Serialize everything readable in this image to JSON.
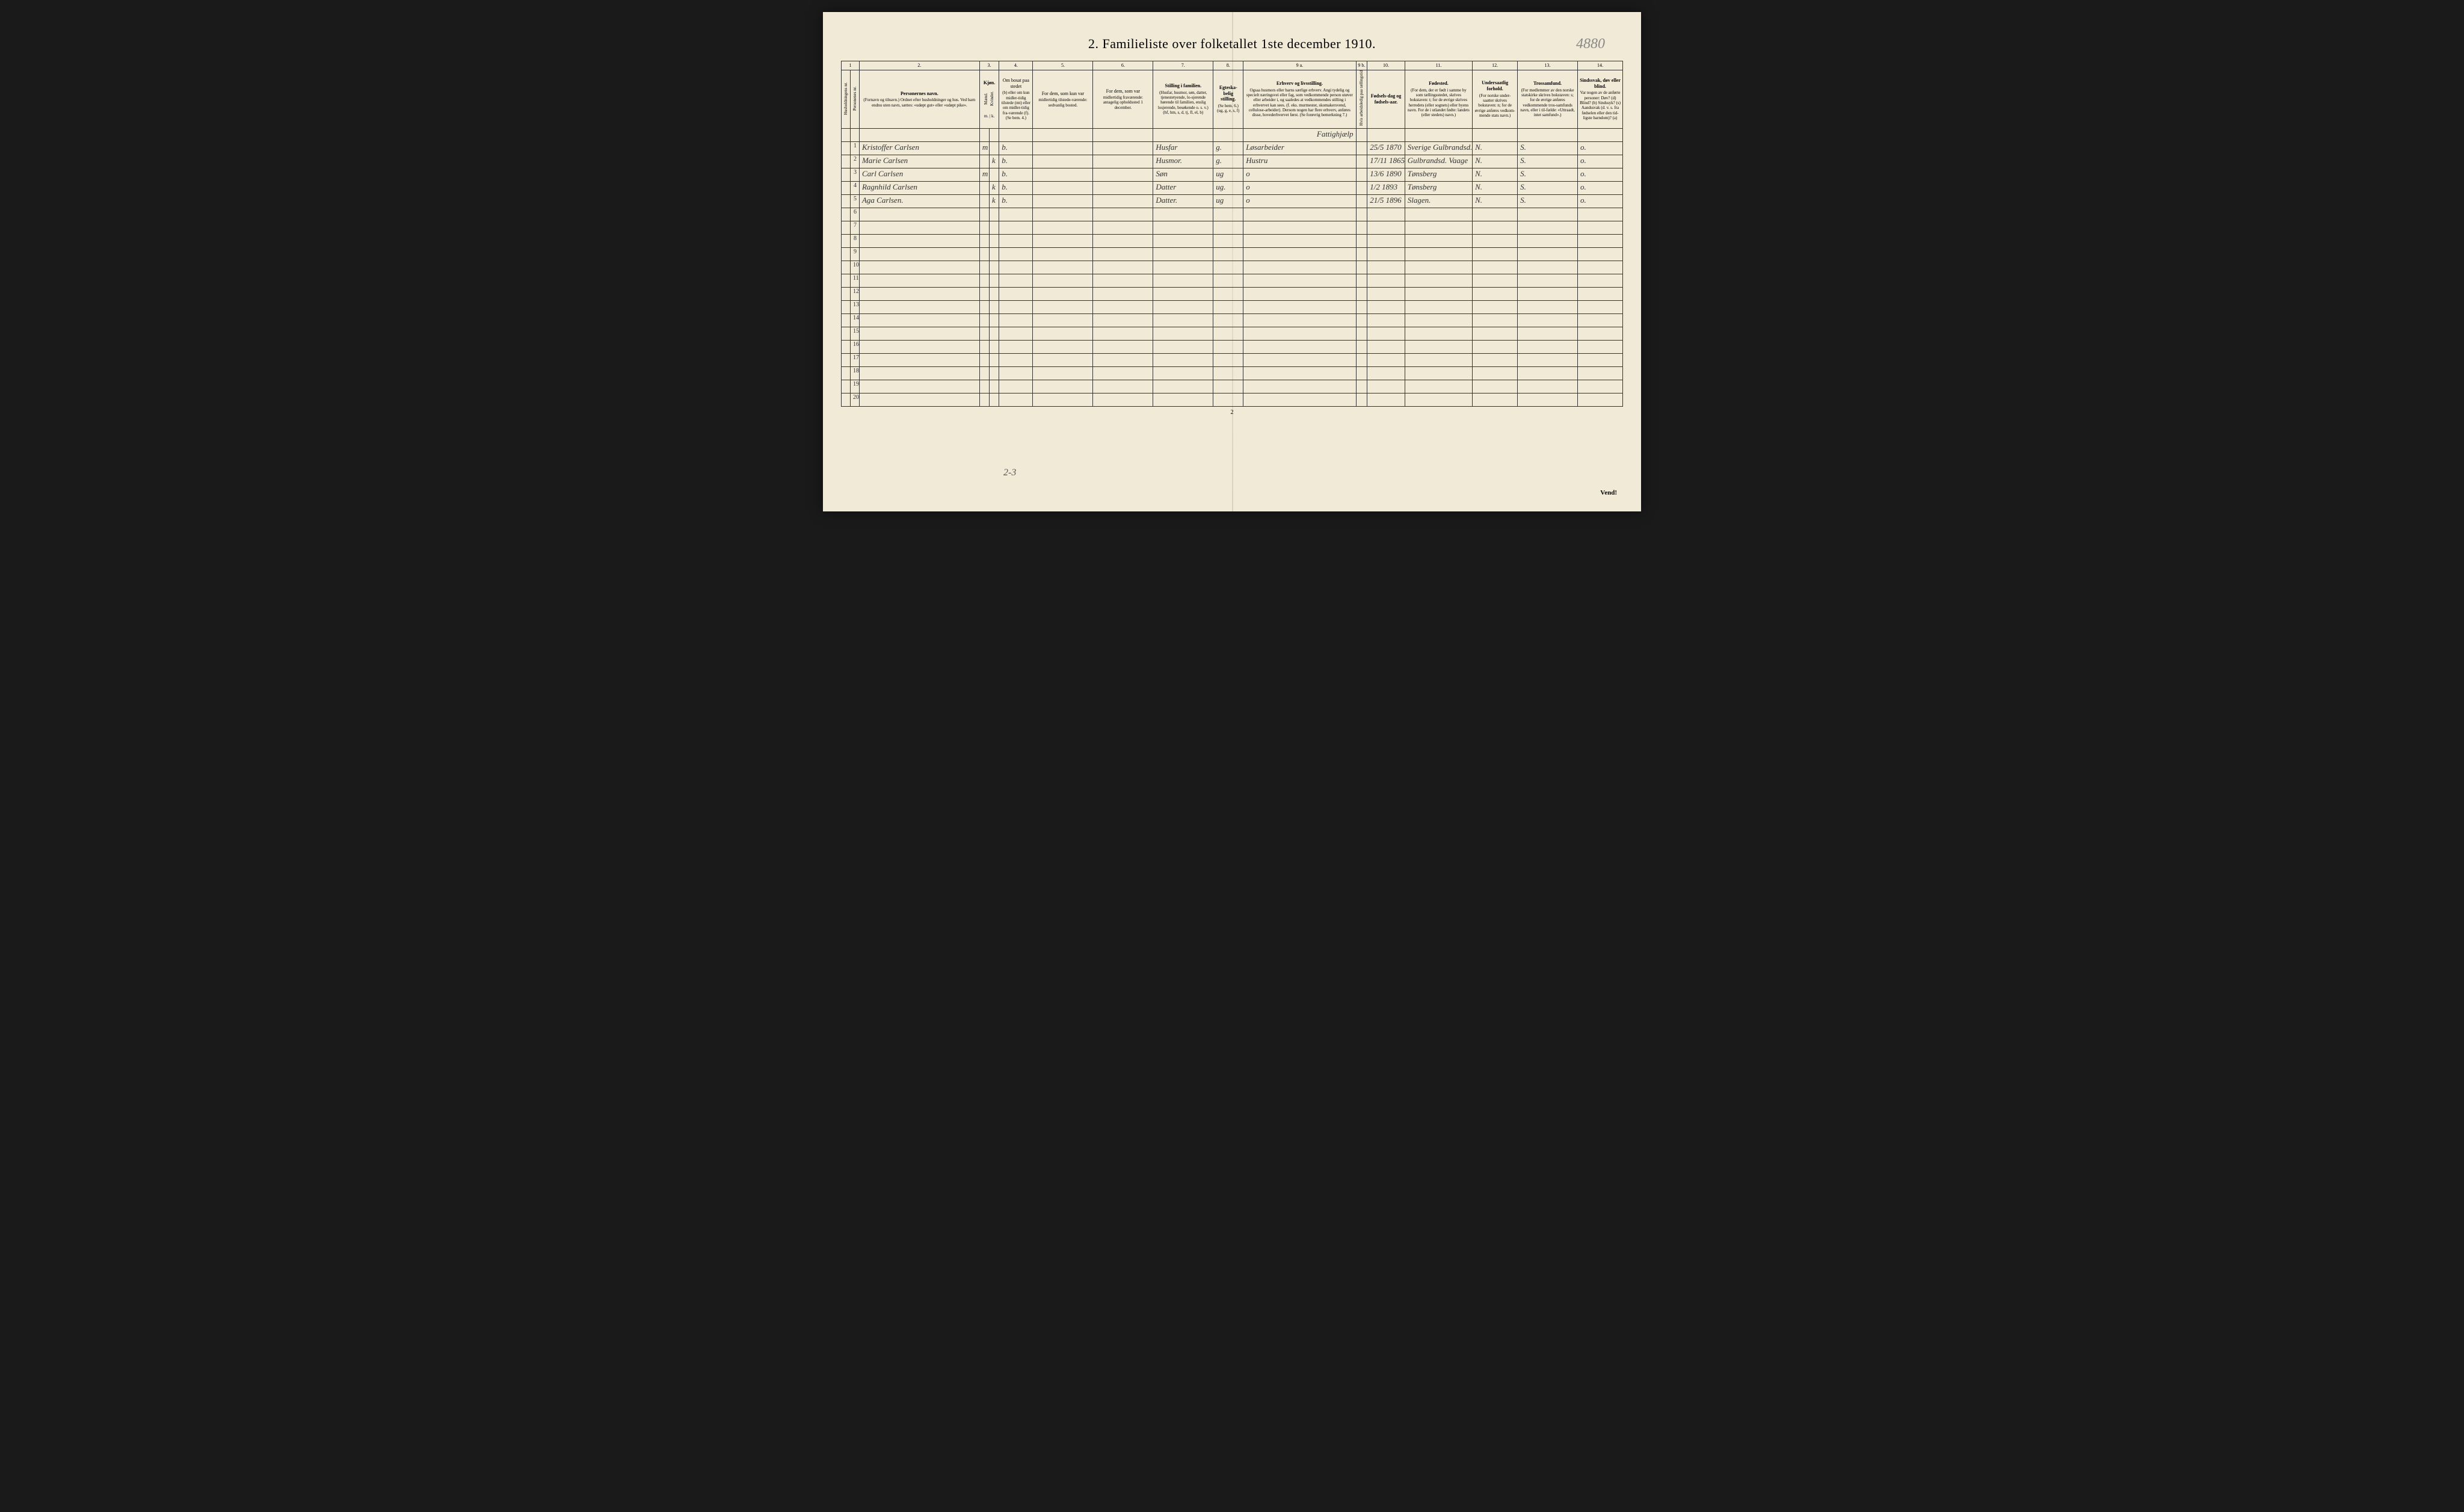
{
  "title": "2.  Familieliste over folketallet 1ste december 1910.",
  "annotation": "4880",
  "page_number": "2",
  "vend_text": "Vend!",
  "bottom_note": "2-3",
  "column_numbers": [
    "1",
    "2.",
    "3.",
    "4.",
    "5.",
    "6.",
    "7.",
    "8.",
    "9 a.",
    "9 b.",
    "10.",
    "11.",
    "12.",
    "13.",
    "14."
  ],
  "headers": {
    "col1a": "Husholdningens nr.",
    "col1b": "Personenes nr.",
    "col2_title": "Personernes navn.",
    "col2_sub": "(Fornavn og tilnavn.)\nOrdnet efter husholdninger og hus.\nVed barn endnu uten navn, sættes: «udøpt gut» eller «udøpt pike».",
    "col3_title": "Kjøn.",
    "col3a": "Mænd.",
    "col3b": "Kvinder.",
    "col3_sub": "m. | k.",
    "col4_title": "Om bosat paa stedet",
    "col4_sub": "(b) eller om kun midler-tidig tilstede (mt) eller om midler-tidig fra-værende (f). (Se bem. 4.)",
    "col5_title": "For dem, som kun var",
    "col5_sub": "midlertidig tilstede-værende:\nsedvanlig bosted.",
    "col6_title": "For dem, som var",
    "col6_sub": "midlertidig fraværende:\nantagelig opholdssted 1 december.",
    "col7_title": "Stilling i familien.",
    "col7_sub": "(Husfar, husmor, søn, datter, tjenestetyende, lo-sjerende hørende til familien, enslig losjerende, besøkende o. s. v.)\n(hf, hm, s, d, tj, fl, el, b)",
    "col8_title": "Egteska-belig stilling.",
    "col8_sub": "(Se bem. 6.) (ug, g, e, s, f)",
    "col9a_title": "Erhverv og livsstilling.",
    "col9a_sub": "Ogsaa husmors eller barns særlige erhverv. Angi tydelig og specielt næringsvei eller fag, som vedkommende person utøver eller arbeider i, og saaledes at vedkommendes stilling i erhvervet kan sees. (f. eks. murmester, skomakersvend, cellulose-arbeider). Dersom nogen har flere erhverv, anføres disse, hovederhvervet først. (Se forøvrig bemerkning 7.)",
    "col9b": "Hvis arbeidsledig paa tællingstidens sættes her bokstaven l.",
    "col10_title": "Fødsels-dag og fødsels-aar.",
    "col11_title": "Fødested.",
    "col11_sub": "(For dem, der er født i samme by som tællingsstedet, skrives bokstaven: t; for de øvrige skrives herredets (eller sognets) eller byens navn. For de i utlandet fødte: landets (eller stedets) navn.)",
    "col12_title": "Undersaatlig forhold.",
    "col12_sub": "(For norske under-saatter skrives bokstaven: n; for de øvrige anføres vedkom-mende stats navn.)",
    "col13_title": "Trossamfund.",
    "col13_sub": "(For medlemmer av den norske statskirke skrives bokstaven: s; for de øvrige anføres vedkommende tros-samfunds navn, eller i til-fælde: «Uttraadt, intet samfund».)",
    "col14_title": "Sindssvak, døv eller blind.",
    "col14_sub": "Var nogen av de anførte personer:\nDøv? (d)\nBlind? (b)\nSindssyk? (s)\nAandssvak (d. v. s. fra fødselen eller den tid-ligste barndom)? (a)"
  },
  "rows": [
    {
      "num": "1",
      "name": "Kristoffer Carlsen",
      "sex_m": "m",
      "sex_k": "",
      "bosat": "b.",
      "col5": "",
      "col6": "",
      "stilling": "Husfar",
      "egte": "g.",
      "erhverv": "Løsarbeider",
      "col9b": "",
      "fodsel": "25/5 1870",
      "fodested": "Sverige Gulbrandsd.",
      "under": "N.",
      "tros": "S.",
      "sind": "o."
    },
    {
      "num": "2",
      "name": "Marie Carlsen",
      "sex_m": "",
      "sex_k": "k",
      "bosat": "b.",
      "col5": "",
      "col6": "",
      "stilling": "Husmor.",
      "egte": "g.",
      "erhverv": "Hustru",
      "col9b": "",
      "fodsel": "17/11 1865",
      "fodested": "Gulbrandsd. Vaage",
      "under": "N.",
      "tros": "S.",
      "sind": "o."
    },
    {
      "num": "3",
      "name": "Carl Carlsen",
      "sex_m": "m",
      "sex_k": "",
      "bosat": "b.",
      "col5": "",
      "col6": "",
      "stilling": "Søn",
      "egte": "ug",
      "erhverv": "o",
      "col9b": "",
      "fodsel": "13/6 1890",
      "fodested": "Tønsberg",
      "under": "N.",
      "tros": "S.",
      "sind": "o."
    },
    {
      "num": "4",
      "name": "Ragnhild Carlsen",
      "sex_m": "",
      "sex_k": "k",
      "bosat": "b.",
      "col5": "",
      "col6": "",
      "stilling": "Datter",
      "egte": "ug.",
      "erhverv": "o",
      "col9b": "",
      "fodsel": "1/2 1893",
      "fodested": "Tønsberg",
      "under": "N.",
      "tros": "S.",
      "sind": "o."
    },
    {
      "num": "5",
      "name": "Aga Carlsen.",
      "sex_m": "",
      "sex_k": "k",
      "bosat": "b.",
      "col5": "",
      "col6": "",
      "stilling": "Datter.",
      "egte": "ug",
      "erhverv": "o",
      "col9b": "",
      "fodsel": "21/5 1896",
      "fodested": "Slagen.",
      "under": "N.",
      "tros": "S.",
      "sind": "o."
    },
    {
      "num": "6"
    },
    {
      "num": "7"
    },
    {
      "num": "8"
    },
    {
      "num": "9"
    },
    {
      "num": "10"
    },
    {
      "num": "11"
    },
    {
      "num": "12"
    },
    {
      "num": "13"
    },
    {
      "num": "14"
    },
    {
      "num": "15"
    },
    {
      "num": "16"
    },
    {
      "num": "17"
    },
    {
      "num": "18"
    },
    {
      "num": "19"
    },
    {
      "num": "20"
    }
  ],
  "extra_row_text": "Fattighjælp",
  "colors": {
    "paper": "#f0ead6",
    "ink": "#222222",
    "border": "#333333",
    "handwriting": "#333333",
    "pencil": "#888888"
  },
  "col_widths_pct": [
    1.2,
    1.2,
    16,
    1.3,
    1.3,
    4.5,
    8,
    8,
    8,
    4,
    15,
    1.5,
    5,
    9,
    6,
    8,
    6
  ]
}
